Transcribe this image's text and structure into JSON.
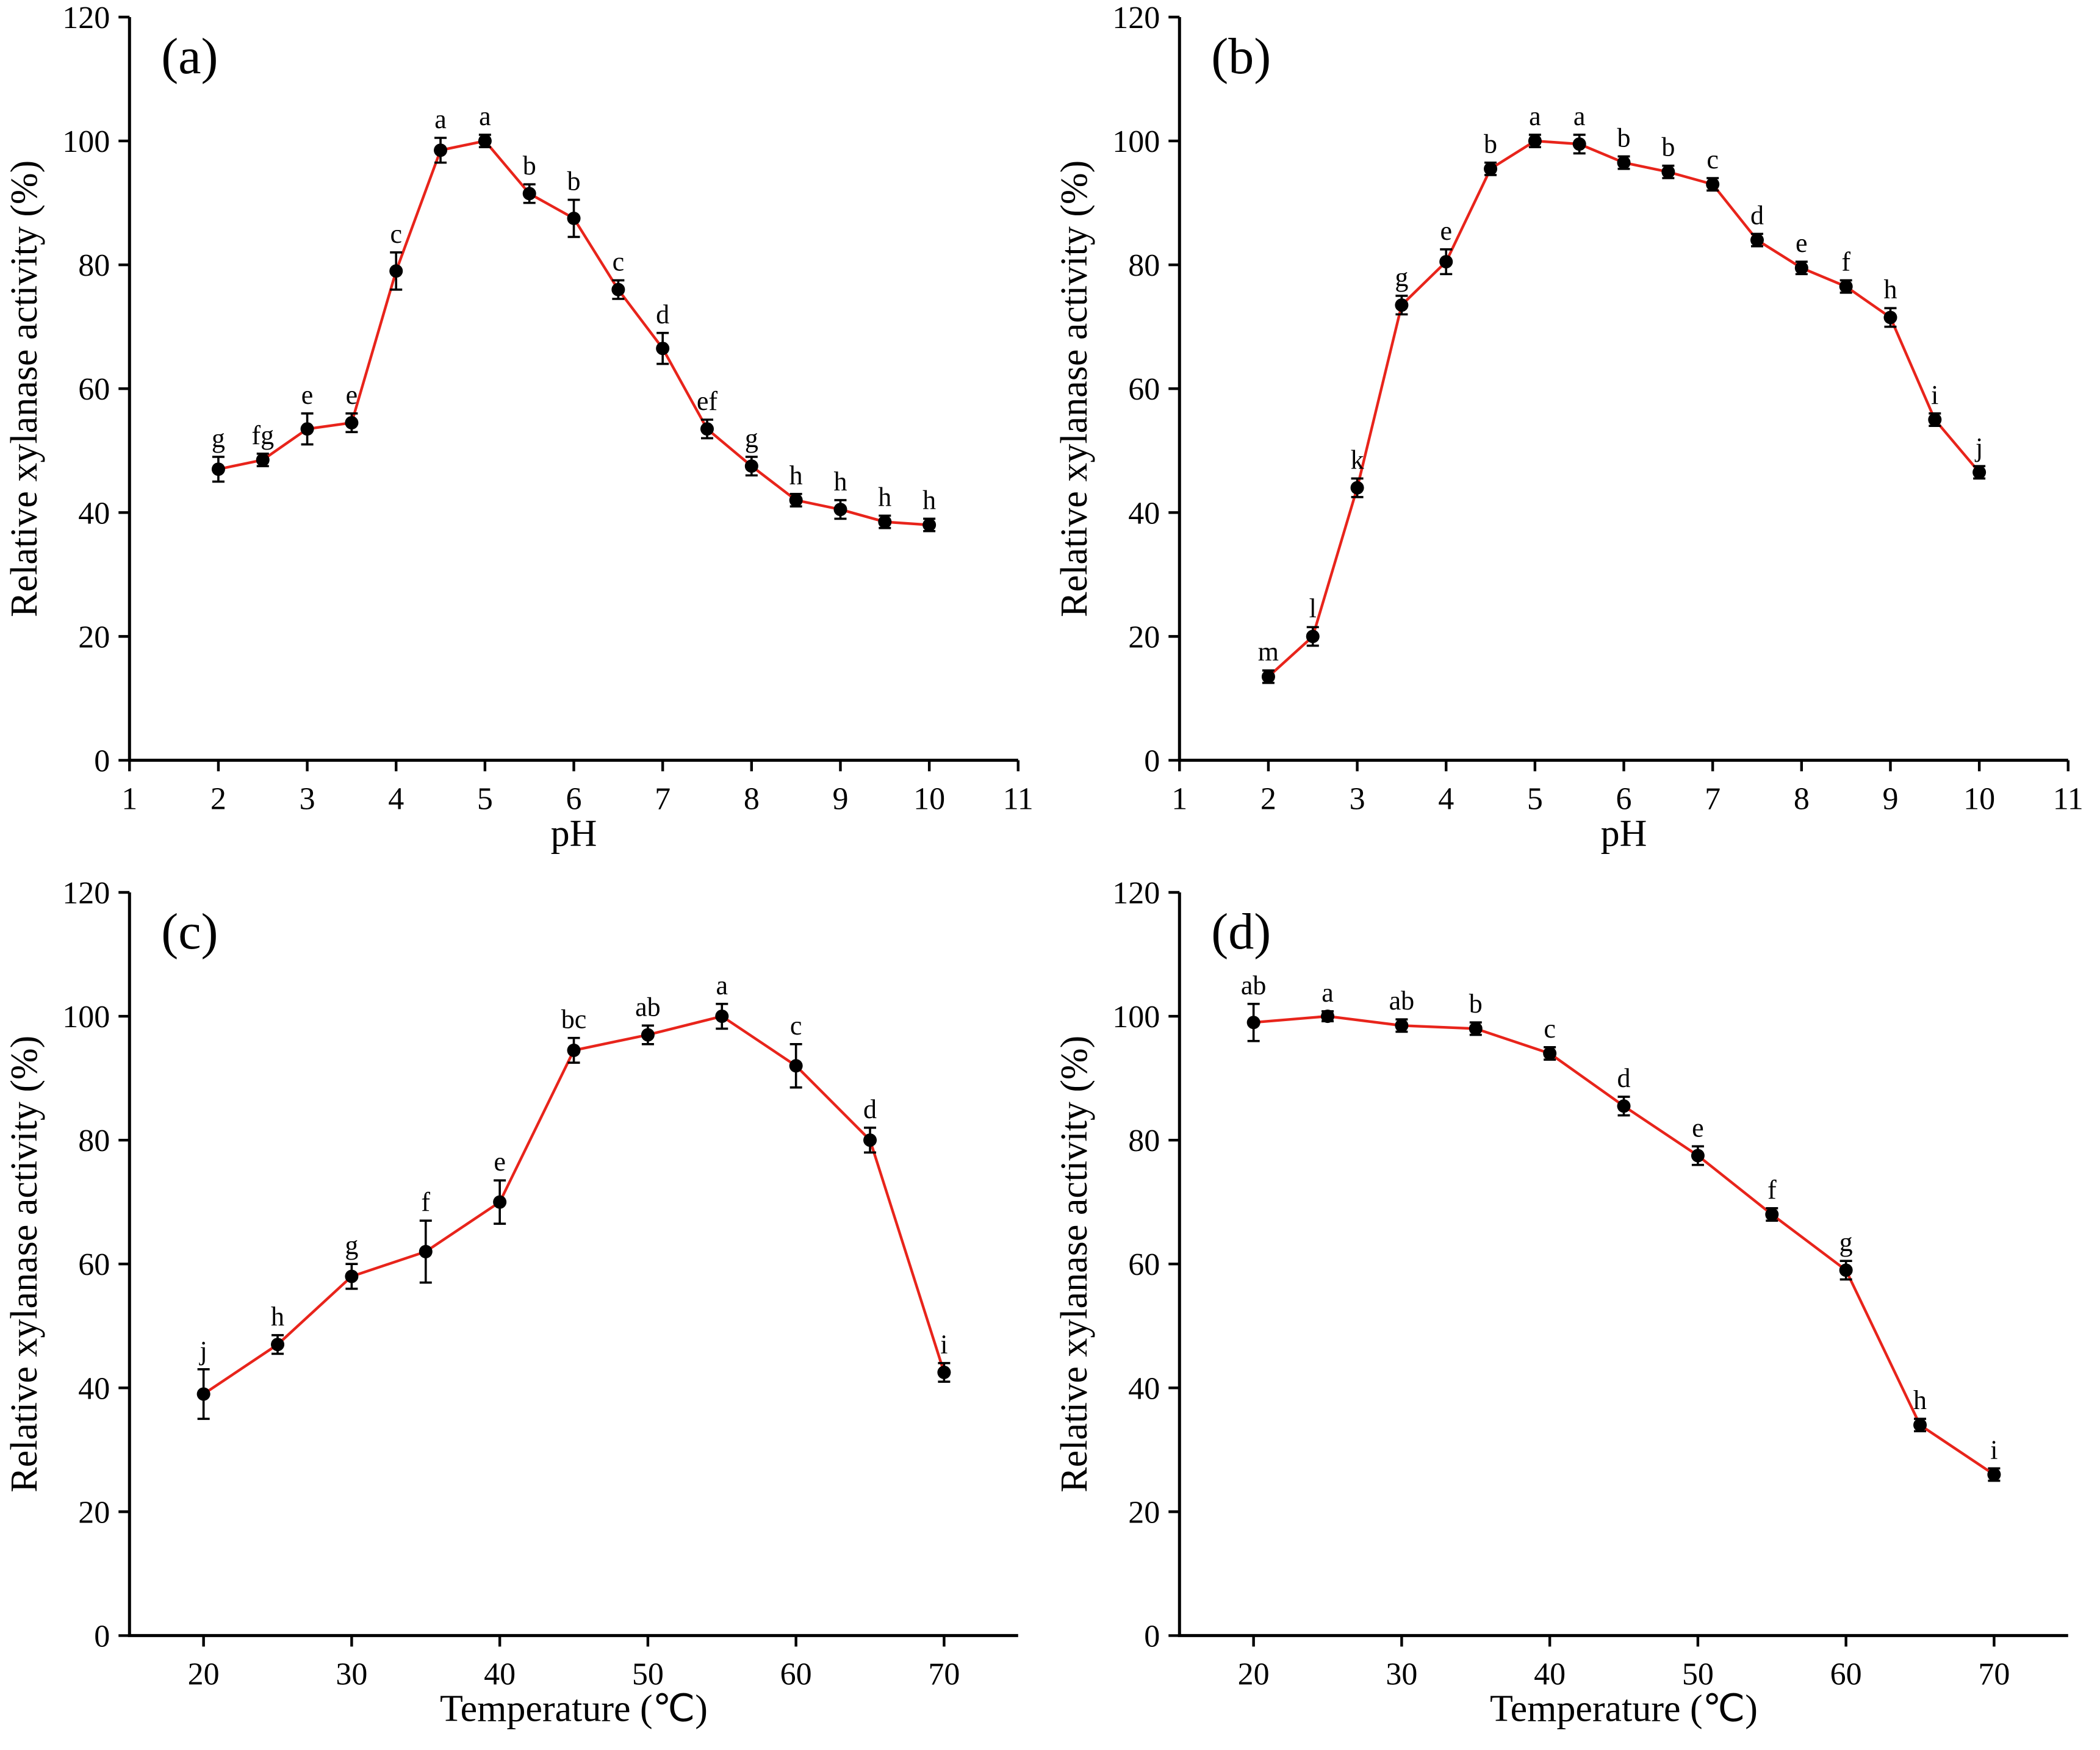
{
  "figure": {
    "background": "#ffffff",
    "line_color": "#e8241b",
    "marker_color": "#000000",
    "error_color": "#000000",
    "axis_color": "#000000"
  },
  "chart_data": [
    {
      "id": "a",
      "type": "line",
      "panel_label": "(a)",
      "xlabel": "pH",
      "ylabel": "Relative xylanase activity (%)",
      "xlim": [
        1,
        11
      ],
      "xticks": [
        1,
        2,
        3,
        4,
        5,
        6,
        7,
        8,
        9,
        10,
        11
      ],
      "ylim": [
        0,
        120
      ],
      "yticks": [
        0,
        20,
        40,
        60,
        80,
        100,
        120
      ],
      "x": [
        2,
        2.5,
        3,
        3.5,
        4,
        4.5,
        5,
        5.5,
        6,
        6.5,
        7,
        7.5,
        8,
        8.5,
        9,
        9.5,
        10
      ],
      "y": [
        47,
        48.5,
        53.5,
        54.5,
        79,
        98.5,
        100,
        91.5,
        87.5,
        76,
        66.5,
        53.5,
        47.5,
        42,
        40.5,
        38.5,
        38
      ],
      "yerr": [
        2,
        1,
        2.5,
        1.5,
        3,
        2,
        1,
        1.5,
        3,
        1.5,
        2.5,
        1.5,
        1.5,
        1,
        1.5,
        1,
        1
      ],
      "point_labels": [
        "g",
        "fg",
        "e",
        "e",
        "c",
        "a",
        "a",
        "b",
        "b",
        "c",
        "d",
        "ef",
        "g",
        "h",
        "h",
        "h",
        "h"
      ],
      "grid": false,
      "legend": "none"
    },
    {
      "id": "b",
      "type": "line",
      "panel_label": "(b)",
      "xlabel": "pH",
      "ylabel": "Relative xylanase activity (%)",
      "xlim": [
        1,
        11
      ],
      "xticks": [
        1,
        2,
        3,
        4,
        5,
        6,
        7,
        8,
        9,
        10,
        11
      ],
      "ylim": [
        0,
        120
      ],
      "yticks": [
        0,
        20,
        40,
        60,
        80,
        100,
        120
      ],
      "x": [
        2,
        2.5,
        3,
        3.5,
        4,
        4.5,
        5,
        5.5,
        6,
        6.5,
        7,
        7.5,
        8,
        8.5,
        9,
        9.5,
        10
      ],
      "y": [
        13.5,
        20,
        44,
        73.5,
        80.5,
        95.5,
        100,
        99.5,
        96.5,
        95,
        93,
        84,
        79.5,
        76.5,
        71.5,
        55,
        46.5
      ],
      "yerr": [
        1,
        1.5,
        1.5,
        1.5,
        2,
        1,
        1,
        1.5,
        1,
        1,
        1,
        1,
        1,
        1,
        1.5,
        1,
        1
      ],
      "point_labels": [
        "m",
        "l",
        "k",
        "g",
        "e",
        "b",
        "a",
        "a",
        "b",
        "b",
        "c",
        "d",
        "e",
        "f",
        "h",
        "i",
        "j"
      ],
      "grid": false,
      "legend": "none"
    },
    {
      "id": "c",
      "type": "line",
      "panel_label": "(c)",
      "xlabel": "Temperature (℃)",
      "ylabel": "Relative xylanase activity (%)",
      "xlim": [
        15,
        75
      ],
      "xticks": [
        20,
        30,
        40,
        50,
        60,
        70
      ],
      "ylim": [
        0,
        120
      ],
      "yticks": [
        0,
        20,
        40,
        60,
        80,
        100,
        120
      ],
      "x": [
        20,
        25,
        30,
        35,
        40,
        45,
        50,
        55,
        60,
        65,
        70
      ],
      "y": [
        39,
        47,
        58,
        62,
        70,
        94.5,
        97,
        100,
        92,
        80,
        42.5
      ],
      "yerr": [
        4,
        1.5,
        2,
        5,
        3.5,
        2,
        1.5,
        2,
        3.5,
        2,
        1.5
      ],
      "point_labels": [
        "j",
        "h",
        "g",
        "f",
        "e",
        "bc",
        "ab",
        "a",
        "c",
        "d",
        "i"
      ],
      "grid": false,
      "legend": "none"
    },
    {
      "id": "d",
      "type": "line",
      "panel_label": "(d)",
      "xlabel": "Temperature (℃)",
      "ylabel": "Relative xylanase activity (%)",
      "xlim": [
        15,
        75
      ],
      "xticks": [
        20,
        30,
        40,
        50,
        60,
        70
      ],
      "ylim": [
        0,
        120
      ],
      "yticks": [
        0,
        20,
        40,
        60,
        80,
        100,
        120
      ],
      "x": [
        20,
        25,
        30,
        35,
        40,
        45,
        50,
        55,
        60,
        65,
        70
      ],
      "y": [
        99,
        100,
        98.5,
        98,
        94,
        85.5,
        77.5,
        68,
        59,
        34,
        26
      ],
      "yerr": [
        3,
        0.8,
        1,
        1,
        1,
        1.5,
        1.5,
        1,
        1.5,
        1,
        1
      ],
      "point_labels": [
        "ab",
        "a",
        "ab",
        "b",
        "c",
        "d",
        "e",
        "f",
        "g",
        "h",
        "i"
      ],
      "grid": false,
      "legend": "none"
    }
  ]
}
